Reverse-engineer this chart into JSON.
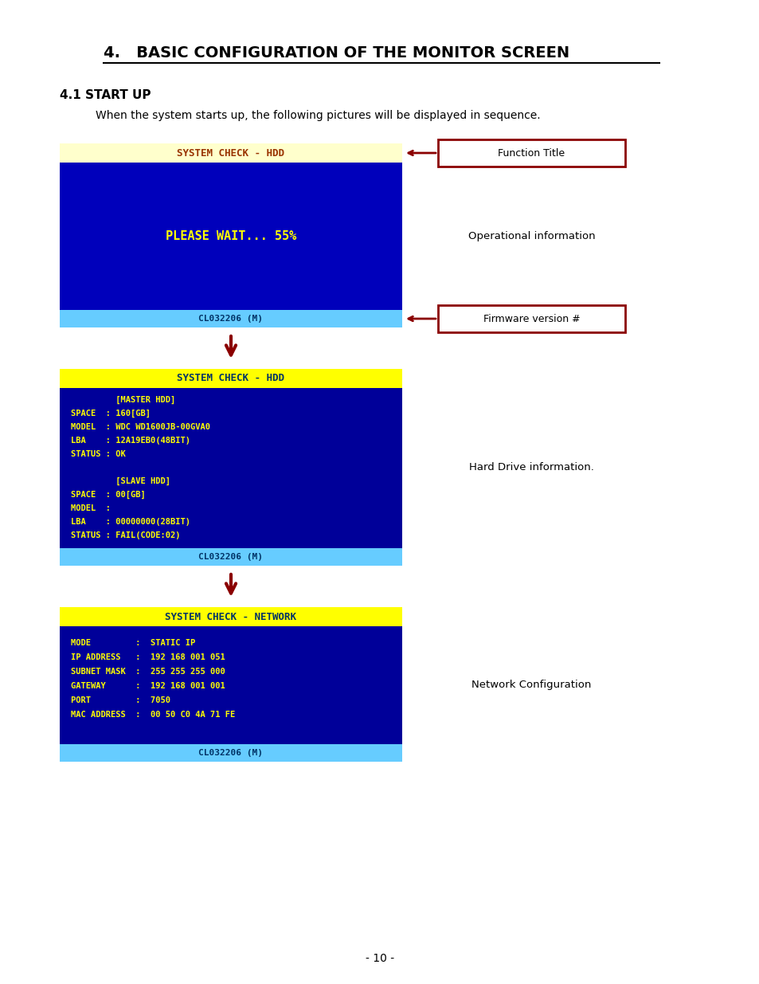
{
  "title": "4.   BASIC CONFIGURATION OF THE MONITOR SCREEN",
  "subtitle_bold": "4.1 START UP",
  "subtitle_text": "When the system starts up, the following pictures will be displayed in sequence.",
  "screen1": {
    "title_bar_color": "#FFFFCC",
    "title_bar_text": "SYSTEM CHECK - HDD",
    "body_color": "#0000BB",
    "body_text": "PLEASE WAIT... 55%",
    "footer_color": "#66CCFF",
    "footer_text": "CL032206 (M)",
    "label1": "Function Title",
    "label2": "Operational information",
    "label3": "Firmware version #"
  },
  "screen2": {
    "title_bar_color": "#FFFF00",
    "title_bar_text": "SYSTEM CHECK - HDD",
    "body_color": "#000099",
    "body_lines": [
      "         [MASTER HDD]",
      "SPACE  : 160[GB]",
      "MODEL  : WDC WD1600JB-00GVA0",
      "LBA    : 12A19EB0(48BIT)",
      "STATUS : OK",
      "",
      "         [SLAVE HDD]",
      "SPACE  : 00[GB]",
      "MODEL  :",
      "LBA    : 00000000(28BIT)",
      "STATUS : FAIL(CODE:02)"
    ],
    "footer_color": "#66CCFF",
    "footer_text": "CL032206 (M)",
    "label": "Hard Drive information."
  },
  "screen3": {
    "title_bar_color": "#FFFF00",
    "title_bar_text": "SYSTEM CHECK - NETWORK",
    "body_color": "#000099",
    "body_lines": [
      "MODE         :  STATIC IP",
      "IP ADDRESS   :  192 168 001 051",
      "SUBNET MASK  :  255 255 255 000",
      "GATEWAY      :  192 168 001 001",
      "PORT         :  7050",
      "MAC ADDRESS  :  00 50 C0 4A 71 FE"
    ],
    "footer_color": "#66CCFF",
    "footer_text": "CL032206 (M)",
    "label": "Network Configuration"
  },
  "page_number": "- 10 -",
  "bg_color": "#ffffff",
  "text_color": "#000000",
  "arrow_color": "#8B0000"
}
